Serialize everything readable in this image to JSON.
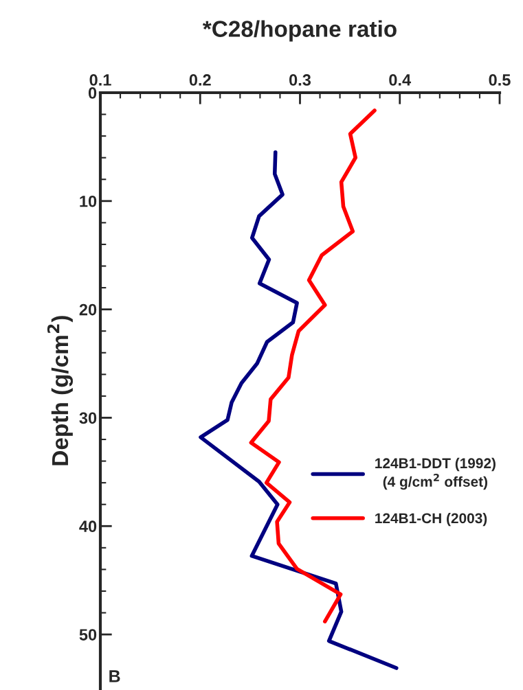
{
  "chart_data": {
    "type": "line",
    "title": "*C28/hopane ratio",
    "ylabel": "Depth (g/cm$^{2}$)",
    "annotations": [
      "B"
    ],
    "xlim": [
      0.1,
      0.5
    ],
    "xticks": [
      0.1,
      0.2,
      0.3,
      0.4,
      0.5
    ],
    "ylim": [
      55,
      0
    ],
    "yticks": [
      0,
      10,
      20,
      30,
      40,
      50
    ],
    "grid": false,
    "legend": "right",
    "marker": "none",
    "line_style": "solid",
    "series": [
      {
        "name": "124B1-DDT (1992)\n(4 g/cm$^{2}$ offset)",
        "color": "#000080",
        "x": [
          0.2754,
          0.2747,
          0.2825,
          0.259,
          0.252,
          0.269,
          0.2595,
          0.297,
          0.293,
          0.267,
          0.257,
          0.2414,
          0.2315,
          0.2274,
          0.2005,
          0.259,
          0.2775,
          0.2517,
          0.336,
          0.3414,
          0.329,
          0.3966
        ],
        "values": [
          5.5,
          7.5,
          9.4,
          11.4,
          13.4,
          15.4,
          17.6,
          19.4,
          21.2,
          23.0,
          25.0,
          26.8,
          28.6,
          30.2,
          31.8,
          35.9,
          38.0,
          42.75,
          45.3,
          47.9,
          50.6,
          53.1
        ]
      },
      {
        "name": "124B1-CH (2003)",
        "color": "#ff0000",
        "x": [
          0.3747,
          0.3503,
          0.3556,
          0.3414,
          0.3434,
          0.3529,
          0.3218,
          0.309,
          0.325,
          0.2986,
          0.292,
          0.2885,
          0.2706,
          0.2687,
          0.251,
          0.279,
          0.2664,
          0.2897,
          0.277,
          0.2786,
          0.297,
          0.3407,
          0.325
        ],
        "values": [
          1.65,
          3.8,
          6.0,
          8.25,
          10.5,
          12.8,
          15.0,
          17.3,
          19.6,
          22.0,
          24.2,
          26.3,
          28.3,
          30.3,
          32.3,
          34.1,
          36.0,
          37.8,
          39.6,
          41.6,
          43.95,
          46.3,
          48.8
        ]
      }
    ]
  }
}
